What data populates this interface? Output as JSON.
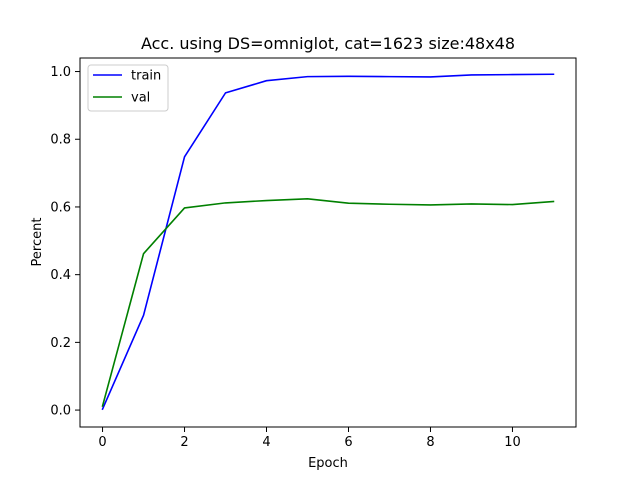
{
  "chart_data": {
    "type": "line",
    "title": "Acc. using DS=omniglot, cat=1623 size:48x48",
    "xlabel": "Epoch",
    "ylabel": "Percent",
    "xlim": [
      -0.55,
      11.55
    ],
    "ylim": [
      -0.05,
      1.04
    ],
    "xticks": [
      0,
      2,
      4,
      6,
      8,
      10
    ],
    "yticks": [
      0.0,
      0.2,
      0.4,
      0.6,
      0.8,
      1.0
    ],
    "xtick_labels": [
      "0",
      "2",
      "4",
      "6",
      "8",
      "10"
    ],
    "ytick_labels": [
      "0.0",
      "0.2",
      "0.4",
      "0.6",
      "0.8",
      "1.0"
    ],
    "grid": false,
    "legend_position": "top-left",
    "x": [
      0,
      1,
      2,
      3,
      4,
      5,
      6,
      7,
      8,
      9,
      10,
      11
    ],
    "series": [
      {
        "name": "train",
        "color": "#0000ff",
        "values": [
          0.003,
          0.28,
          0.748,
          0.937,
          0.973,
          0.985,
          0.986,
          0.985,
          0.984,
          0.99,
          0.991,
          0.992
        ]
      },
      {
        "name": "val",
        "color": "#008000",
        "values": [
          0.012,
          0.462,
          0.597,
          0.612,
          0.619,
          0.624,
          0.611,
          0.608,
          0.606,
          0.609,
          0.607,
          0.616
        ]
      }
    ]
  }
}
